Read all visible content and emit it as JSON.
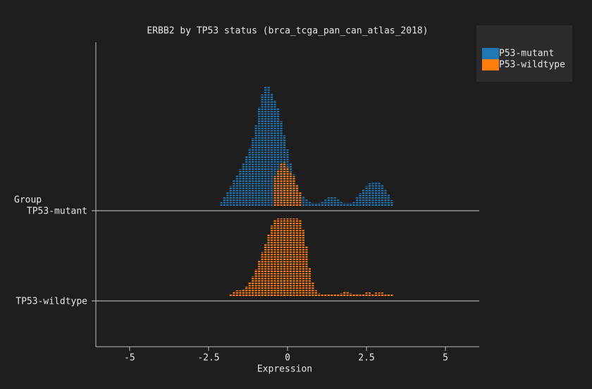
{
  "chart_data": {
    "type": "ridgeline-dots",
    "title": "ERBB2 by TP53 status (brca_tcga_pan_can_atlas_2018)",
    "x_label": "Expression",
    "y_label": "Group",
    "xlim": [
      -6.07,
      6.07
    ],
    "xticks": [
      -5,
      -2.5,
      0,
      2.5,
      5
    ],
    "series": [
      {
        "name": "P53-mutant",
        "color": "#1f77b4"
      },
      {
        "name": "P53-wildtype",
        "color": "#ff7f0e"
      }
    ],
    "groups": [
      {
        "label": "TP53-mutant",
        "layers": [
          {
            "color": "#1f77b4",
            "x": [
              -2.1,
              -2.0,
              -1.9,
              -1.8,
              -1.7,
              -1.6,
              -1.5,
              -1.4,
              -1.3,
              -1.2,
              -1.1,
              -1.0,
              -0.9,
              -0.8,
              -0.7,
              -0.6,
              -0.5,
              -0.4,
              -0.3,
              -0.2,
              -0.1,
              0.0,
              0.1,
              0.2,
              0.3,
              0.4,
              0.5,
              0.6,
              0.7,
              0.8,
              0.9,
              1.0,
              1.1,
              1.2,
              1.3,
              1.4,
              1.5,
              1.6,
              1.7,
              1.8,
              1.9,
              2.0,
              2.1,
              2.2,
              2.3,
              2.4,
              2.5,
              2.6,
              2.7,
              2.8,
              2.9,
              3.0,
              3.1,
              3.2,
              3.3
            ],
            "values": [
              0.05,
              0.12,
              0.2,
              0.28,
              0.36,
              0.44,
              0.52,
              0.6,
              0.7,
              0.82,
              0.96,
              1.15,
              1.4,
              1.58,
              1.7,
              1.7,
              1.6,
              1.5,
              1.38,
              1.2,
              1.0,
              0.8,
              0.6,
              0.45,
              0.3,
              0.2,
              0.14,
              0.1,
              0.06,
              0.04,
              0.04,
              0.04,
              0.06,
              0.1,
              0.12,
              0.12,
              0.12,
              0.1,
              0.06,
              0.04,
              0.04,
              0.04,
              0.06,
              0.12,
              0.18,
              0.24,
              0.28,
              0.32,
              0.34,
              0.34,
              0.34,
              0.3,
              0.24,
              0.16,
              0.08
            ]
          },
          {
            "color": "#ff7f0e",
            "x": [
              -0.4,
              -0.3,
              -0.2,
              -0.1,
              0.0,
              0.1,
              0.2,
              0.3,
              0.4
            ],
            "values": [
              0.42,
              0.5,
              0.6,
              0.62,
              0.55,
              0.48,
              0.42,
              0.3,
              0.2
            ]
          }
        ]
      },
      {
        "label": "TP53-wildtype",
        "layers": [
          {
            "color": "#ff7f0e",
            "x": [
              -1.8,
              -1.7,
              -1.6,
              -1.5,
              -1.4,
              -1.3,
              -1.2,
              -1.1,
              -1.0,
              -0.9,
              -0.8,
              -0.7,
              -0.6,
              -0.5,
              -0.4,
              -0.3,
              -0.2,
              -0.1,
              0.0,
              0.1,
              0.2,
              0.3,
              0.4,
              0.5,
              0.6,
              0.7,
              0.8,
              0.9,
              1.0,
              1.1,
              1.2,
              1.3,
              1.4,
              1.5,
              1.6,
              1.7,
              1.8,
              1.9,
              2.0,
              2.1,
              2.2,
              2.3,
              2.4,
              2.5,
              2.6,
              2.7,
              2.8,
              2.9,
              3.0,
              3.1,
              3.2,
              3.3
            ],
            "values": [
              0.02,
              0.06,
              0.08,
              0.08,
              0.1,
              0.14,
              0.2,
              0.28,
              0.38,
              0.5,
              0.62,
              0.74,
              0.88,
              1.0,
              1.08,
              1.1,
              1.1,
              1.1,
              1.1,
              1.1,
              1.1,
              1.1,
              1.08,
              0.95,
              0.7,
              0.4,
              0.2,
              0.08,
              0.04,
              0.02,
              0.02,
              0.02,
              0.02,
              0.02,
              0.02,
              0.04,
              0.06,
              0.06,
              0.04,
              0.02,
              0.02,
              0.02,
              0.02,
              0.05,
              0.05,
              0.02,
              0.05,
              0.05,
              0.05,
              0.02,
              0.02,
              0.02
            ]
          }
        ]
      }
    ]
  }
}
